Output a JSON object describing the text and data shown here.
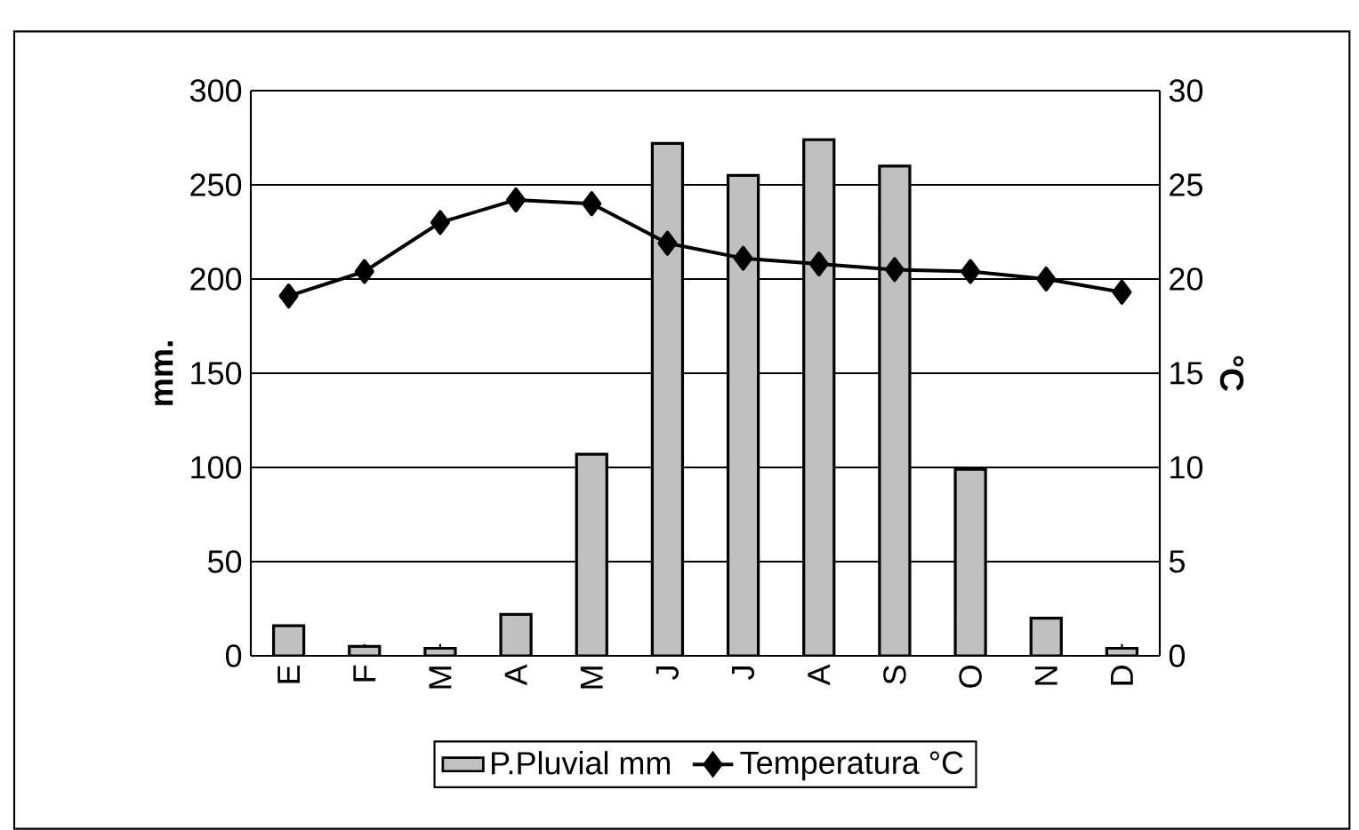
{
  "chart_data": {
    "type": "bar",
    "ylabel": "mm.",
    "y2label": "°C",
    "categories": [
      "E",
      "F",
      "M",
      "A",
      "M",
      "J",
      "J",
      "A",
      "S",
      "O",
      "N",
      "D"
    ],
    "series": [
      {
        "name": "P.Pluvial mm",
        "color": "#c0c0c0",
        "values": [
          16,
          5,
          4,
          22,
          107,
          272,
          255,
          274,
          260,
          99,
          20,
          4
        ]
      },
      {
        "name": "Temperatura °C",
        "type": "line",
        "axis": "y2",
        "color": "#000000",
        "marker": "diamond",
        "values": [
          19.1,
          20.4,
          23.0,
          24.2,
          24.0,
          21.9,
          21.1,
          20.8,
          20.5,
          20.4,
          20.0,
          19.3
        ]
      }
    ],
    "ylim": [
      0,
      300
    ],
    "yticks": [
      0,
      50,
      100,
      150,
      200,
      250,
      300
    ],
    "y2lim": [
      0,
      30
    ],
    "y2ticks": [
      0,
      5,
      10,
      15,
      20,
      25,
      30
    ],
    "grid": "y",
    "legend": "bottom"
  }
}
